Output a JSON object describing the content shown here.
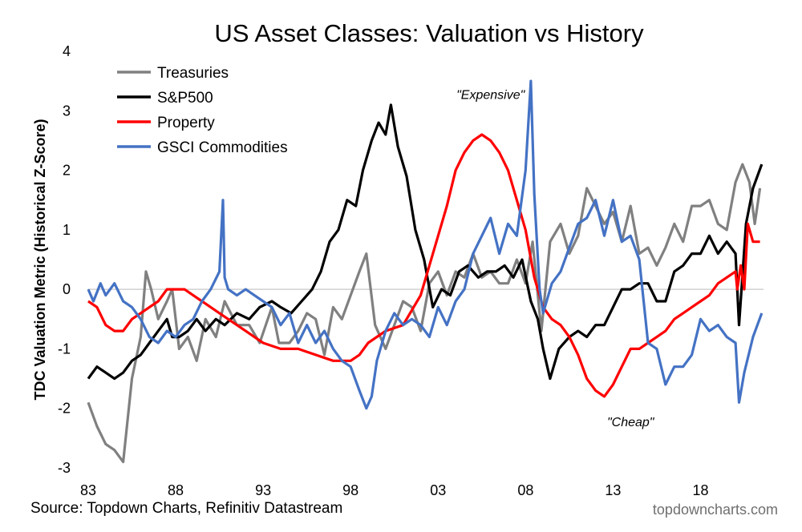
{
  "chart_data": {
    "type": "line",
    "title": "US Asset Classes: Valuation vs History",
    "ylabel": "TDC Valuation Metric (Historical Z-Score)",
    "xlabel": "",
    "ylim": [
      -3,
      4
    ],
    "xlim": [
      1983.0,
      2021.6
    ],
    "yticks": [
      "4",
      "3",
      "2",
      "1",
      "0",
      "-1",
      "-2",
      "-3"
    ],
    "ytick_values": [
      4,
      3,
      2,
      1,
      0,
      -1,
      -2,
      -3
    ],
    "xticks": [
      "83",
      "88",
      "93",
      "98",
      "03",
      "08",
      "13",
      "18"
    ],
    "xtick_values": [
      1983,
      1988,
      1993,
      1998,
      2003,
      2008,
      2013,
      2018
    ],
    "legend_position": "top-left",
    "annotations": [
      {
        "text": "\"Expensive\"",
        "x": 2006.0,
        "y": 3.2
      },
      {
        "text": "\"Cheap\"",
        "x": 2014.0,
        "y": -2.3
      }
    ],
    "series": [
      {
        "name": "Treasuries",
        "color": "#808080",
        "x": [
          1983.0,
          1983.5,
          1984.0,
          1984.5,
          1985.0,
          1985.5,
          1986.0,
          1986.3,
          1986.6,
          1987.0,
          1987.5,
          1987.8,
          1988.2,
          1988.7,
          1989.2,
          1989.7,
          1990.3,
          1990.8,
          1991.5,
          1992.2,
          1992.8,
          1993.5,
          1993.9,
          1994.5,
          1995.0,
          1995.5,
          1996.0,
          1996.5,
          1997.0,
          1997.5,
          1998.0,
          1998.5,
          1998.9,
          1999.4,
          2000.0,
          2000.5,
          2001.0,
          2001.5,
          2002.0,
          2002.5,
          2003.0,
          2003.5,
          2004.0,
          2004.5,
          2005.0,
          2005.5,
          2006.0,
          2006.5,
          2007.0,
          2007.5,
          2008.0,
          2008.4,
          2008.9,
          2009.4,
          2010.0,
          2010.5,
          2011.0,
          2011.5,
          2012.0,
          2012.5,
          2013.0,
          2013.5,
          2014.0,
          2014.5,
          2015.0,
          2015.5,
          2016.0,
          2016.5,
          2017.0,
          2017.5,
          2018.0,
          2018.5,
          2019.0,
          2019.5,
          2020.0,
          2020.4,
          2020.8,
          2021.1,
          2021.4
        ],
        "values": [
          -1.9,
          -2.3,
          -2.6,
          -2.7,
          -2.9,
          -1.5,
          -0.8,
          0.3,
          0.0,
          -0.5,
          -0.2,
          0.0,
          -1.0,
          -0.8,
          -1.2,
          -0.5,
          -0.8,
          -0.2,
          -0.6,
          -0.6,
          -0.9,
          -0.3,
          -0.9,
          -0.9,
          -0.7,
          -0.4,
          -0.5,
          -1.1,
          -0.3,
          -0.5,
          -0.1,
          0.3,
          0.6,
          -0.6,
          -1.0,
          -0.6,
          -0.2,
          -0.3,
          -0.7,
          0.1,
          0.3,
          -0.1,
          0.3,
          0.2,
          0.6,
          0.2,
          0.3,
          0.1,
          0.1,
          0.5,
          0.1,
          0.8,
          -0.7,
          0.8,
          1.1,
          0.6,
          0.9,
          1.7,
          1.4,
          1.1,
          1.3,
          0.8,
          1.4,
          0.6,
          0.7,
          0.4,
          0.7,
          1.1,
          0.8,
          1.4,
          1.4,
          1.5,
          1.1,
          1.0,
          1.8,
          2.1,
          1.8,
          1.1,
          1.7
        ]
      },
      {
        "name": "S&P500",
        "color": "#000000",
        "x": [
          1983.0,
          1983.5,
          1984.0,
          1984.5,
          1985.0,
          1985.5,
          1986.0,
          1986.5,
          1987.0,
          1987.5,
          1987.8,
          1988.2,
          1988.7,
          1989.2,
          1989.7,
          1990.3,
          1990.8,
          1991.5,
          1992.2,
          1992.8,
          1993.5,
          1994.0,
          1994.6,
          1995.2,
          1995.8,
          1996.3,
          1996.8,
          1997.3,
          1997.8,
          1998.3,
          1998.7,
          1999.2,
          1999.6,
          2000.0,
          2000.3,
          2000.7,
          2001.2,
          2001.7,
          2002.2,
          2002.7,
          2003.2,
          2003.7,
          2004.2,
          2004.7,
          2005.3,
          2005.8,
          2006.3,
          2006.8,
          2007.3,
          2007.8,
          2008.3,
          2008.7,
          2009.0,
          2009.4,
          2009.9,
          2010.5,
          2011.0,
          2011.5,
          2012.0,
          2012.5,
          2013.0,
          2013.5,
          2014.0,
          2014.5,
          2015.0,
          2015.5,
          2016.0,
          2016.5,
          2017.0,
          2017.5,
          2018.0,
          2018.5,
          2019.0,
          2019.5,
          2020.0,
          2020.2,
          2020.6,
          2021.0,
          2021.5
        ],
        "values": [
          -1.5,
          -1.3,
          -1.4,
          -1.5,
          -1.4,
          -1.2,
          -1.1,
          -0.9,
          -0.7,
          -0.5,
          -0.8,
          -0.8,
          -0.7,
          -0.5,
          -0.7,
          -0.5,
          -0.6,
          -0.4,
          -0.5,
          -0.3,
          -0.2,
          -0.3,
          -0.4,
          -0.2,
          0.0,
          0.3,
          0.8,
          1.0,
          1.5,
          1.4,
          2.0,
          2.5,
          2.8,
          2.6,
          3.1,
          2.4,
          1.9,
          1.0,
          0.5,
          -0.3,
          0.0,
          -0.1,
          0.3,
          0.4,
          0.2,
          0.3,
          0.3,
          0.4,
          0.2,
          0.5,
          -0.2,
          -0.5,
          -1.0,
          -1.5,
          -1.0,
          -0.8,
          -0.7,
          -0.8,
          -0.6,
          -0.6,
          -0.3,
          0.0,
          0.0,
          0.1,
          0.1,
          -0.2,
          -0.2,
          0.3,
          0.4,
          0.6,
          0.6,
          0.9,
          0.6,
          0.8,
          0.6,
          -0.6,
          1.1,
          1.7,
          2.1
        ]
      },
      {
        "name": "Property",
        "color": "#ff0000",
        "x": [
          1983.0,
          1983.5,
          1984.0,
          1984.5,
          1985.0,
          1985.5,
          1986.0,
          1986.5,
          1987.0,
          1987.5,
          1988.0,
          1988.5,
          1989.0,
          1989.5,
          1990.0,
          1991.0,
          1992.0,
          1993.0,
          1994.0,
          1995.0,
          1996.0,
          1997.0,
          1998.0,
          1998.5,
          1999.0,
          2000.0,
          2001.0,
          2002.0,
          2002.5,
          2003.0,
          2003.5,
          2004.0,
          2004.5,
          2005.0,
          2005.5,
          2006.0,
          2006.5,
          2007.0,
          2007.5,
          2008.0,
          2008.5,
          2009.0,
          2009.5,
          2010.0,
          2010.5,
          2011.0,
          2011.5,
          2012.0,
          2012.5,
          2013.0,
          2013.5,
          2014.0,
          2014.5,
          2015.0,
          2015.5,
          2016.0,
          2016.5,
          2017.0,
          2017.5,
          2018.0,
          2018.5,
          2019.0,
          2019.5,
          2020.0,
          2020.1,
          2020.3,
          2020.5,
          2020.7,
          2021.0,
          2021.4
        ],
        "values": [
          -0.2,
          -0.3,
          -0.6,
          -0.7,
          -0.7,
          -0.5,
          -0.4,
          -0.3,
          -0.2,
          0.0,
          0.0,
          0.0,
          -0.1,
          -0.2,
          -0.3,
          -0.5,
          -0.7,
          -0.9,
          -1.0,
          -1.0,
          -1.1,
          -1.2,
          -1.2,
          -1.1,
          -0.9,
          -0.7,
          -0.6,
          -0.1,
          0.4,
          0.9,
          1.4,
          2.0,
          2.3,
          2.5,
          2.6,
          2.5,
          2.3,
          2.0,
          1.5,
          1.0,
          0.2,
          -0.3,
          -0.5,
          -0.6,
          -0.8,
          -1.1,
          -1.5,
          -1.7,
          -1.8,
          -1.6,
          -1.3,
          -1.0,
          -1.0,
          -0.9,
          -0.8,
          -0.7,
          -0.5,
          -0.4,
          -0.3,
          -0.2,
          -0.1,
          0.1,
          0.2,
          0.3,
          0.0,
          0.4,
          0.0,
          1.1,
          0.8,
          0.8
        ]
      },
      {
        "name": "GSCI Commodities",
        "color": "#4472c4",
        "x": [
          1983.0,
          1983.3,
          1983.7,
          1984.0,
          1984.5,
          1985.0,
          1985.5,
          1986.0,
          1986.5,
          1987.0,
          1987.5,
          1988.0,
          1988.5,
          1989.0,
          1989.5,
          1990.0,
          1990.5,
          1990.7,
          1990.8,
          1991.0,
          1991.5,
          1992.0,
          1992.5,
          1993.0,
          1993.5,
          1994.0,
          1994.5,
          1995.0,
          1995.5,
          1996.0,
          1996.5,
          1997.0,
          1997.5,
          1998.0,
          1998.5,
          1998.9,
          1999.2,
          1999.5,
          2000.0,
          2000.5,
          2001.0,
          2001.5,
          2002.0,
          2002.5,
          2003.0,
          2003.5,
          2004.0,
          2004.5,
          2005.0,
          2005.5,
          2006.0,
          2006.5,
          2007.0,
          2007.5,
          2008.0,
          2008.3,
          2008.5,
          2008.8,
          2009.0,
          2009.5,
          2010.0,
          2010.5,
          2011.0,
          2011.5,
          2012.0,
          2012.5,
          2013.0,
          2013.5,
          2014.0,
          2014.5,
          2015.0,
          2015.5,
          2016.0,
          2016.5,
          2017.0,
          2017.5,
          2018.0,
          2018.5,
          2019.0,
          2019.5,
          2020.0,
          2020.2,
          2020.5,
          2021.0,
          2021.5
        ],
        "values": [
          0.0,
          -0.2,
          0.1,
          -0.1,
          0.1,
          -0.2,
          -0.3,
          -0.5,
          -0.8,
          -0.9,
          -0.7,
          -0.8,
          -0.6,
          -0.5,
          -0.2,
          0.0,
          0.3,
          1.5,
          0.2,
          0.0,
          -0.1,
          0.0,
          -0.1,
          -0.2,
          -0.3,
          -0.6,
          -0.4,
          -0.9,
          -0.6,
          -0.9,
          -0.7,
          -1.0,
          -1.2,
          -1.3,
          -1.7,
          -2.0,
          -1.8,
          -1.2,
          -0.7,
          -0.4,
          -0.6,
          -0.5,
          -0.6,
          -0.8,
          -0.3,
          -0.6,
          -0.2,
          0.0,
          0.6,
          0.9,
          1.2,
          0.6,
          1.1,
          0.9,
          2.0,
          3.5,
          1.6,
          0.0,
          -0.4,
          0.1,
          0.3,
          0.7,
          1.1,
          1.2,
          1.5,
          0.9,
          1.5,
          0.8,
          0.9,
          0.5,
          -0.9,
          -1.0,
          -1.6,
          -1.3,
          -1.3,
          -1.1,
          -0.5,
          -0.7,
          -0.6,
          -0.8,
          -0.9,
          -1.9,
          -1.4,
          -0.8,
          -0.4
        ]
      }
    ]
  },
  "footer": {
    "source": "Source: Topdown Charts, Refinitiv Datastream",
    "brand": "topdowncharts.com"
  }
}
